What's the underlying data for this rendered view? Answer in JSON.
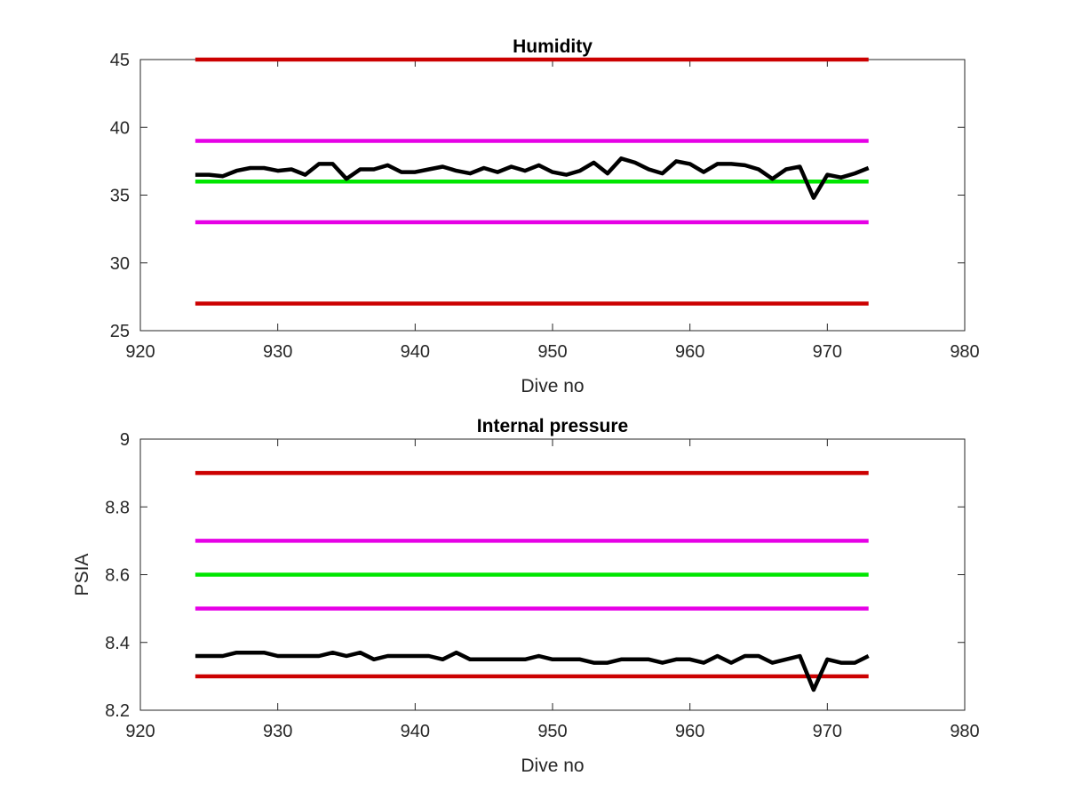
{
  "chart_data": [
    {
      "type": "line",
      "title": "Humidity",
      "xlabel": "Dive no",
      "ylabel": "",
      "xlim": [
        920,
        980
      ],
      "ylim": [
        25,
        45
      ],
      "xticks": [
        "920",
        "930",
        "940",
        "950",
        "960",
        "970",
        "980"
      ],
      "yticks": [
        "25",
        "30",
        "35",
        "40",
        "45"
      ],
      "grid": false,
      "thresholds": [
        {
          "value": 45,
          "color": "#cc0000"
        },
        {
          "value": 39,
          "color": "#e600e6"
        },
        {
          "value": 36,
          "color": "#00e600"
        },
        {
          "value": 33,
          "color": "#e600e6"
        },
        {
          "value": 27,
          "color": "#cc0000"
        }
      ],
      "threshold_x": [
        924,
        973
      ],
      "series": [
        {
          "color": "#000000",
          "x": [
            924,
            925,
            926,
            927,
            928,
            929,
            930,
            931,
            932,
            933,
            934,
            935,
            936,
            937,
            938,
            939,
            940,
            941,
            942,
            943,
            944,
            945,
            946,
            947,
            948,
            949,
            950,
            951,
            952,
            953,
            954,
            955,
            956,
            957,
            958,
            959,
            960,
            961,
            962,
            963,
            964,
            965,
            966,
            967,
            968,
            969,
            970,
            971,
            972,
            973
          ],
          "y": [
            36.5,
            36.5,
            36.4,
            36.8,
            37.0,
            37.0,
            36.8,
            36.9,
            36.5,
            37.3,
            37.3,
            36.2,
            36.9,
            36.9,
            37.2,
            36.7,
            36.7,
            36.9,
            37.1,
            36.8,
            36.6,
            37.0,
            36.7,
            37.1,
            36.8,
            37.2,
            36.7,
            36.5,
            36.8,
            37.4,
            36.6,
            37.7,
            37.4,
            36.9,
            36.6,
            37.5,
            37.3,
            36.7,
            37.3,
            37.3,
            37.2,
            36.9,
            36.2,
            36.9,
            37.1,
            34.8,
            36.5,
            36.3,
            36.6,
            37.0
          ]
        }
      ]
    },
    {
      "type": "line",
      "title": "Internal pressure",
      "xlabel": "Dive no",
      "ylabel": "PSIA",
      "xlim": [
        920,
        980
      ],
      "ylim": [
        8.2,
        9.0
      ],
      "xticks": [
        "920",
        "930",
        "940",
        "950",
        "960",
        "970",
        "980"
      ],
      "yticks": [
        "8.2",
        "8.4",
        "8.6",
        "8.8",
        "9"
      ],
      "grid": false,
      "thresholds": [
        {
          "value": 8.9,
          "color": "#cc0000"
        },
        {
          "value": 8.7,
          "color": "#e600e6"
        },
        {
          "value": 8.6,
          "color": "#00e600"
        },
        {
          "value": 8.5,
          "color": "#e600e6"
        },
        {
          "value": 8.3,
          "color": "#cc0000"
        }
      ],
      "threshold_x": [
        924,
        973
      ],
      "series": [
        {
          "color": "#000000",
          "x": [
            924,
            925,
            926,
            927,
            928,
            929,
            930,
            931,
            932,
            933,
            934,
            935,
            936,
            937,
            938,
            939,
            940,
            941,
            942,
            943,
            944,
            945,
            946,
            947,
            948,
            949,
            950,
            951,
            952,
            953,
            954,
            955,
            956,
            957,
            958,
            959,
            960,
            961,
            962,
            963,
            964,
            965,
            966,
            967,
            968,
            969,
            970,
            971,
            972,
            973
          ],
          "y": [
            8.36,
            8.36,
            8.36,
            8.37,
            8.37,
            8.37,
            8.36,
            8.36,
            8.36,
            8.36,
            8.37,
            8.36,
            8.37,
            8.35,
            8.36,
            8.36,
            8.36,
            8.36,
            8.35,
            8.37,
            8.35,
            8.35,
            8.35,
            8.35,
            8.35,
            8.36,
            8.35,
            8.35,
            8.35,
            8.34,
            8.34,
            8.35,
            8.35,
            8.35,
            8.34,
            8.35,
            8.35,
            8.34,
            8.36,
            8.34,
            8.36,
            8.36,
            8.34,
            8.35,
            8.36,
            8.26,
            8.35,
            8.34,
            8.34,
            8.36
          ]
        }
      ]
    }
  ]
}
